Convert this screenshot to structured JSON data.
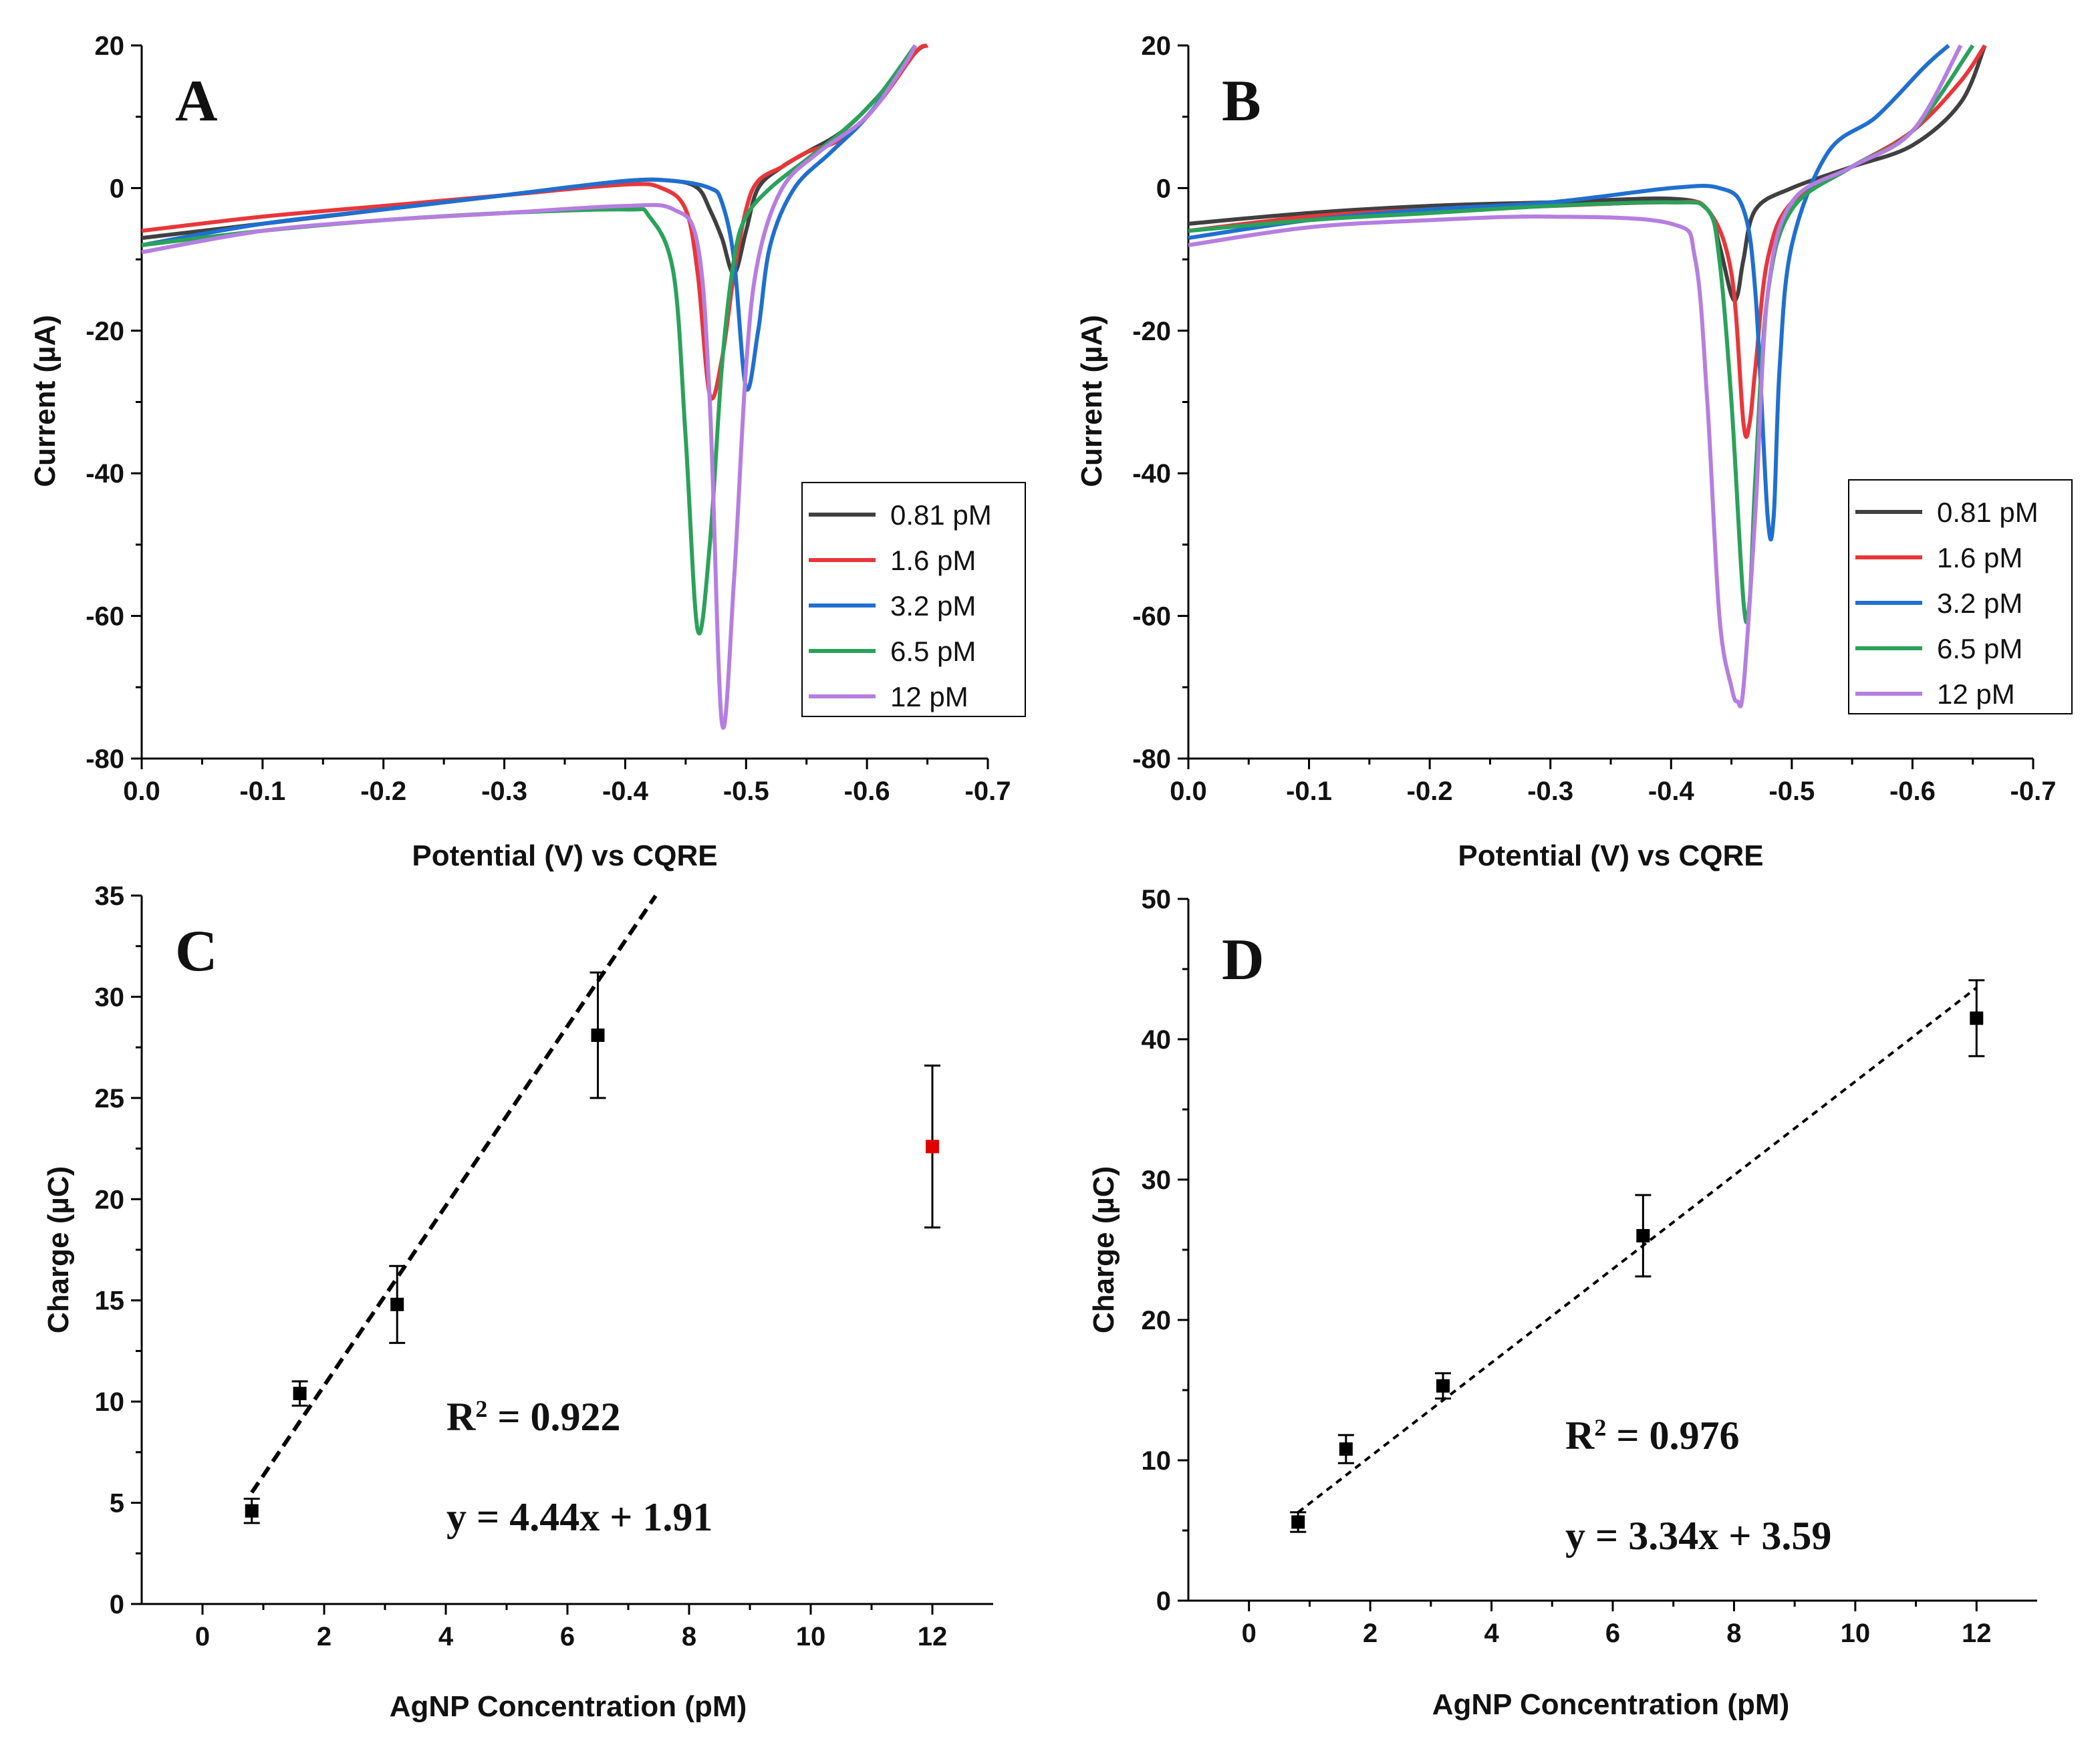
{
  "chart_data": [
    {
      "id": "A",
      "type": "line",
      "panel_label": "A",
      "xlabel": "Potential (V) vs CQRE",
      "ylabel": "Current (µA)",
      "xlim": [
        0.0,
        -0.7
      ],
      "ylim": [
        -80,
        20
      ],
      "xticks": [
        "0.0",
        "-0.1",
        "-0.2",
        "-0.3",
        "-0.4",
        "-0.5",
        "-0.6",
        "-0.7"
      ],
      "yticks": [
        "20",
        "0",
        "-20",
        "-40",
        "-60",
        "-80"
      ],
      "legend_position": "lower-right",
      "series": [
        {
          "name": "0.81 pM",
          "color": "#404040",
          "x": [
            0.0,
            -0.1,
            -0.2,
            -0.3,
            -0.4,
            -0.44,
            -0.46,
            -0.47,
            -0.48,
            -0.49,
            -0.5,
            -0.51,
            -0.53,
            -0.55,
            -0.58,
            -0.61,
            -0.64,
            -0.65
          ],
          "y": [
            -7,
            -5,
            -3,
            -1,
            1,
            1,
            0,
            -3,
            -7,
            -12,
            -6,
            0,
            3,
            5,
            8,
            13,
            19,
            20
          ]
        },
        {
          "name": "1.6 pM",
          "color": "#e8363a",
          "x": [
            0.0,
            -0.1,
            -0.2,
            -0.3,
            -0.4,
            -0.43,
            -0.45,
            -0.46,
            -0.47,
            -0.48,
            -0.49,
            -0.5,
            -0.51,
            -0.53,
            -0.55,
            -0.58,
            -0.61,
            -0.64,
            -0.65
          ],
          "y": [
            -6,
            -4,
            -2.5,
            -1,
            0.5,
            0,
            -3,
            -12,
            -29,
            -24,
            -12,
            -3,
            1,
            3,
            5,
            7,
            12,
            19,
            20
          ]
        },
        {
          "name": "3.2 pM",
          "color": "#1f6fd0",
          "x": [
            0.0,
            -0.1,
            -0.2,
            -0.3,
            -0.4,
            -0.44,
            -0.47,
            -0.48,
            -0.49,
            -0.5,
            -0.51,
            -0.52,
            -0.54,
            -0.57,
            -0.6,
            -0.63,
            -0.64
          ],
          "y": [
            -8,
            -5,
            -3,
            -1,
            1,
            1,
            0,
            -2,
            -10,
            -28,
            -20,
            -8,
            0,
            5,
            10,
            17,
            20
          ]
        },
        {
          "name": "6.5 pM",
          "color": "#2aa25a",
          "x": [
            0.0,
            -0.1,
            -0.2,
            -0.3,
            -0.4,
            -0.42,
            -0.44,
            -0.45,
            -0.46,
            -0.47,
            -0.48,
            -0.49,
            -0.5,
            -0.52,
            -0.55,
            -0.58,
            -0.61,
            -0.64
          ],
          "y": [
            -8,
            -6,
            -4.5,
            -3.5,
            -3,
            -4,
            -12,
            -35,
            -62,
            -50,
            -25,
            -10,
            -4,
            0,
            4,
            8,
            13,
            20
          ]
        },
        {
          "name": "12 pM",
          "color": "#b57ee0",
          "x": [
            0.0,
            -0.1,
            -0.2,
            -0.3,
            -0.4,
            -0.44,
            -0.46,
            -0.47,
            -0.48,
            -0.49,
            -0.5,
            -0.51,
            -0.53,
            -0.56,
            -0.6,
            -0.63,
            -0.64
          ],
          "y": [
            -9,
            -6,
            -4.5,
            -3.5,
            -2.5,
            -3,
            -8,
            -30,
            -75,
            -55,
            -25,
            -10,
            0,
            5,
            10,
            17,
            20
          ]
        }
      ]
    },
    {
      "id": "B",
      "type": "line",
      "panel_label": "B",
      "xlabel": "Potential (V) vs CQRE",
      "ylabel": "Current (µA)",
      "xlim": [
        0.0,
        -0.7
      ],
      "ylim": [
        -80,
        20
      ],
      "xticks": [
        "0.0",
        "-0.1",
        "-0.2",
        "-0.3",
        "-0.4",
        "-0.5",
        "-0.6",
        "-0.7"
      ],
      "yticks": [
        "20",
        "0",
        "-20",
        "-40",
        "-60",
        "-80"
      ],
      "legend_position": "lower-right",
      "series": [
        {
          "name": "0.81 pM",
          "color": "#404040",
          "x": [
            0.0,
            -0.1,
            -0.2,
            -0.3,
            -0.4,
            -0.43,
            -0.44,
            -0.45,
            -0.455,
            -0.46,
            -0.47,
            -0.5,
            -0.55,
            -0.6,
            -0.64,
            -0.66
          ],
          "y": [
            -5,
            -3.5,
            -2.5,
            -2,
            -1.5,
            -3,
            -8,
            -15,
            -15,
            -10,
            -3,
            0,
            3,
            6,
            12,
            20
          ]
        },
        {
          "name": "1.6 pM",
          "color": "#e8363a",
          "x": [
            0.0,
            -0.1,
            -0.2,
            -0.3,
            -0.4,
            -0.43,
            -0.45,
            -0.46,
            -0.465,
            -0.47,
            -0.48,
            -0.5,
            -0.55,
            -0.6,
            -0.64,
            -0.66
          ],
          "y": [
            -6,
            -4,
            -3,
            -2.5,
            -2,
            -3,
            -12,
            -33,
            -33,
            -25,
            -10,
            -2,
            3,
            8,
            15,
            20
          ]
        },
        {
          "name": "3.2 pM",
          "color": "#1f6fd0",
          "x": [
            0.0,
            -0.1,
            -0.2,
            -0.3,
            -0.4,
            -0.44,
            -0.46,
            -0.47,
            -0.48,
            -0.485,
            -0.49,
            -0.5,
            -0.53,
            -0.57,
            -0.61,
            -0.63
          ],
          "y": [
            -7,
            -4.5,
            -3,
            -2,
            0,
            0,
            -3,
            -15,
            -46,
            -46,
            -25,
            -8,
            5,
            10,
            17,
            20
          ]
        },
        {
          "name": "6.5 pM",
          "color": "#2aa25a",
          "x": [
            0.0,
            -0.1,
            -0.2,
            -0.3,
            -0.4,
            -0.43,
            -0.44,
            -0.45,
            -0.46,
            -0.465,
            -0.47,
            -0.48,
            -0.5,
            -0.55,
            -0.6,
            -0.65
          ],
          "y": [
            -6,
            -4.5,
            -3.5,
            -2.5,
            -2,
            -3,
            -10,
            -30,
            -58,
            -58,
            -40,
            -15,
            -3,
            3,
            8,
            20
          ]
        },
        {
          "name": "12 pM",
          "color": "#b57ee0",
          "x": [
            0.0,
            -0.1,
            -0.2,
            -0.3,
            -0.4,
            -0.42,
            -0.43,
            -0.44,
            -0.45,
            -0.455,
            -0.46,
            -0.47,
            -0.48,
            -0.5,
            -0.55,
            -0.6,
            -0.64
          ],
          "y": [
            -8,
            -5.5,
            -4.5,
            -4,
            -5,
            -10,
            -30,
            -60,
            -70,
            -72,
            -70,
            -45,
            -15,
            -2,
            3,
            8,
            20
          ]
        }
      ]
    },
    {
      "id": "C",
      "type": "scatter",
      "panel_label": "C",
      "xlabel": "AgNP Concentration (pM)",
      "ylabel": "Charge (µC)",
      "xlim": [
        -1,
        13
      ],
      "ylim": [
        0,
        35
      ],
      "xticks": [
        "0",
        "2",
        "4",
        "6",
        "8",
        "10",
        "12"
      ],
      "yticks": [
        "35",
        "30",
        "25",
        "20",
        "15",
        "10",
        "5",
        "0"
      ],
      "points": [
        {
          "x": 0.81,
          "y": 4.6,
          "err": 0.6,
          "color": "#000000"
        },
        {
          "x": 1.6,
          "y": 10.4,
          "err": 0.6,
          "color": "#000000"
        },
        {
          "x": 3.2,
          "y": 14.8,
          "err": 1.9,
          "color": "#000000"
        },
        {
          "x": 6.5,
          "y": 28.1,
          "err": 3.1,
          "color": "#000000"
        },
        {
          "x": 12,
          "y": 22.6,
          "err": 4.0,
          "color": "#e00000"
        }
      ],
      "fit": {
        "slope": 4.44,
        "intercept": 1.91,
        "x_range": [
          0.81,
          7.45
        ]
      },
      "r2_text": "0.922",
      "equation_text": "y = 4.44x + 1.91"
    },
    {
      "id": "D",
      "type": "scatter",
      "panel_label": "D",
      "xlabel": "AgNP Concentration (pM)",
      "ylabel": "Charge (µC)",
      "xlim": [
        -1,
        13
      ],
      "ylim": [
        0,
        50
      ],
      "xticks": [
        "0",
        "2",
        "4",
        "6",
        "8",
        "10",
        "12"
      ],
      "yticks": [
        "50",
        "40",
        "30",
        "20",
        "10",
        "0"
      ],
      "points": [
        {
          "x": 0.81,
          "y": 5.6,
          "err": 0.7,
          "color": "#000000"
        },
        {
          "x": 1.6,
          "y": 10.8,
          "err": 1.0,
          "color": "#000000"
        },
        {
          "x": 3.2,
          "y": 15.3,
          "err": 0.9,
          "color": "#000000"
        },
        {
          "x": 6.5,
          "y": 26.0,
          "err": 2.9,
          "color": "#000000"
        },
        {
          "x": 12,
          "y": 41.5,
          "err": 2.7,
          "color": "#000000"
        }
      ],
      "fit": {
        "slope": 3.34,
        "intercept": 3.59,
        "x_range": [
          0.81,
          12
        ]
      },
      "r2_text": "0.976",
      "equation_text": "y = 3.34x + 3.59"
    }
  ]
}
